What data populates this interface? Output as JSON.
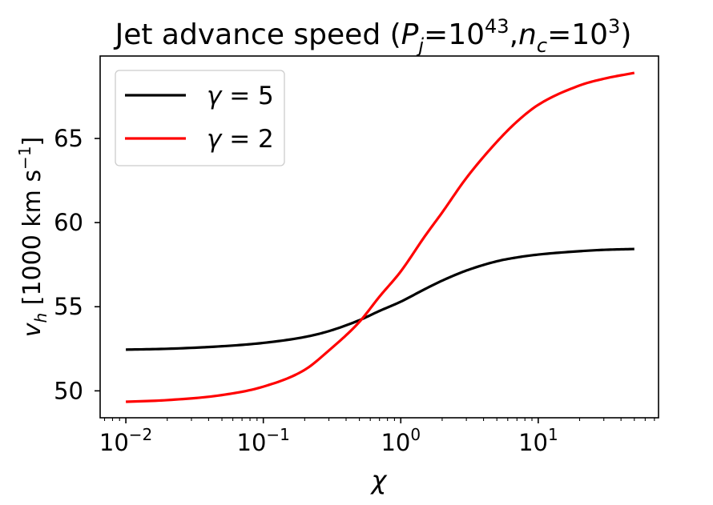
{
  "chart_data": {
    "type": "line",
    "title": {
      "prefix": "Jet advance speed (",
      "p_sym": "P",
      "p_sub": "j",
      "p_eq": "=10",
      "p_exp": "43",
      "sep": ",",
      "n_sym": "n",
      "n_sub": "c",
      "n_eq": "=10",
      "n_exp": "3",
      "suffix": ")"
    },
    "xlabel": "χ",
    "ylabel": {
      "sym": "v",
      "sub": "h",
      "units_pre": " [1000 km s",
      "units_exp": "−1",
      "units_post": "]"
    },
    "x_scale": "log",
    "xlim": [
      0.0065,
      75
    ],
    "ylim": [
      48.4,
      69.9
    ],
    "x_ticks": [
      {
        "base": "10",
        "exp": "−2",
        "value": 0.01
      },
      {
        "base": "10",
        "exp": "−1",
        "value": 0.1
      },
      {
        "base": "10",
        "exp": "0",
        "value": 1
      },
      {
        "base": "10",
        "exp": "1",
        "value": 10
      }
    ],
    "y_ticks": [
      {
        "label": "50",
        "value": 50
      },
      {
        "label": "55",
        "value": 55
      },
      {
        "label": "60",
        "value": 60
      },
      {
        "label": "65",
        "value": 65
      }
    ],
    "legend_position": "top-left",
    "series": [
      {
        "name_sym": "γ",
        "name_rest": " = 5",
        "color": "#000000",
        "x": [
          0.01,
          0.02,
          0.05,
          0.1,
          0.2,
          0.3,
          0.5,
          0.7,
          1,
          1.5,
          2,
          3,
          5,
          7,
          10,
          20,
          30,
          50
        ],
        "y": [
          52.45,
          52.5,
          52.65,
          52.85,
          53.2,
          53.55,
          54.2,
          54.75,
          55.3,
          56.05,
          56.55,
          57.15,
          57.7,
          57.93,
          58.1,
          58.3,
          58.38,
          58.43
        ]
      },
      {
        "name_sym": "γ",
        "name_rest": " = 2",
        "color": "#ff0000",
        "x": [
          0.01,
          0.02,
          0.05,
          0.1,
          0.2,
          0.3,
          0.5,
          0.7,
          1,
          1.5,
          2,
          3,
          5,
          7,
          10,
          20,
          30,
          50
        ],
        "y": [
          49.35,
          49.45,
          49.75,
          50.25,
          51.25,
          52.4,
          54.1,
          55.6,
          57.1,
          59.2,
          60.6,
          62.65,
          64.8,
          66.0,
          67.0,
          68.15,
          68.55,
          68.9
        ]
      }
    ]
  }
}
